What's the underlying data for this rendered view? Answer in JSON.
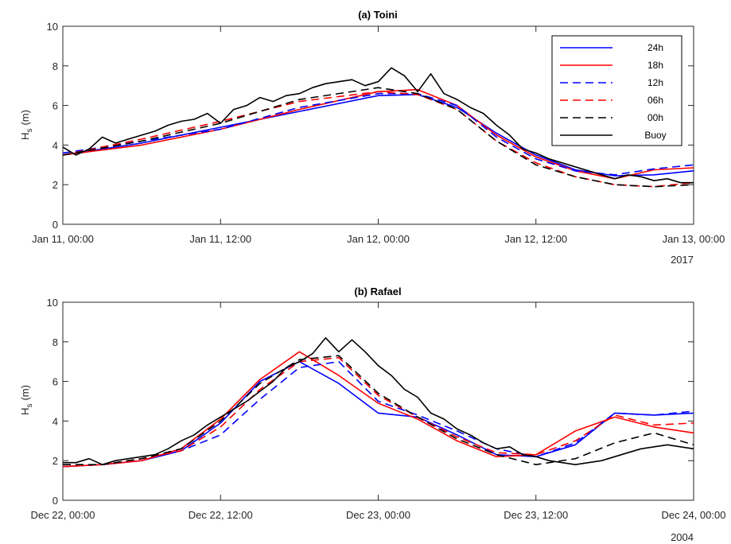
{
  "colors": {
    "blue": "#0000ff",
    "red": "#ff0000",
    "black": "#000000"
  },
  "chart_data": [
    {
      "type": "line",
      "title": "(a) Toini",
      "ylabel_main": "H",
      "ylabel_sub": "s",
      "ylabel_unit": "(m)",
      "ylim": [
        0,
        10
      ],
      "yticks": [
        0,
        2,
        4,
        6,
        8,
        10
      ],
      "xlim": [
        0,
        48
      ],
      "xticks": [
        0,
        12,
        24,
        36,
        48
      ],
      "xtick_labels": [
        "Jan 11, 00:00",
        "Jan 11, 12:00",
        "Jan 12, 00:00",
        "Jan 12, 12:00",
        "Jan 13, 00:00"
      ],
      "year_label": "2017",
      "grid": false,
      "legend": "top-right",
      "series": [
        {
          "name": "24h",
          "color": "#0000ff",
          "dash": "solid",
          "x": [
            0,
            6,
            12,
            18,
            24,
            27,
            30,
            33,
            36,
            39,
            42,
            45,
            48
          ],
          "y": [
            3.5,
            4.1,
            4.9,
            5.7,
            6.5,
            6.55,
            5.9,
            4.6,
            3.5,
            2.75,
            2.45,
            2.5,
            2.7
          ]
        },
        {
          "name": "18h",
          "color": "#ff0000",
          "dash": "solid",
          "x": [
            0,
            6,
            12,
            18,
            24,
            27,
            30,
            33,
            36,
            39,
            42,
            45,
            48
          ],
          "y": [
            3.5,
            4.0,
            4.8,
            5.8,
            6.7,
            6.8,
            6.0,
            4.5,
            3.4,
            2.7,
            2.3,
            2.75,
            2.85
          ]
        },
        {
          "name": "12h",
          "color": "#0000ff",
          "dash": "dashed",
          "x": [
            0,
            6,
            12,
            18,
            24,
            27,
            30,
            33,
            36,
            39,
            42,
            45,
            48
          ],
          "y": [
            3.6,
            4.2,
            4.8,
            5.9,
            6.6,
            6.6,
            6.0,
            4.4,
            3.3,
            2.7,
            2.5,
            2.8,
            3.0
          ]
        },
        {
          "name": "06h",
          "color": "#ff0000",
          "dash": "dashed",
          "x": [
            0,
            6,
            12,
            18,
            24,
            27,
            30,
            33,
            36,
            39,
            42,
            45,
            48
          ],
          "y": [
            3.5,
            4.3,
            5.2,
            6.2,
            6.7,
            6.55,
            5.8,
            4.2,
            3.1,
            2.4,
            2.0,
            1.9,
            2.1
          ]
        },
        {
          "name": "00h",
          "color": "#000000",
          "dash": "dashed",
          "x": [
            0,
            6,
            12,
            18,
            24,
            27,
            30,
            33,
            36,
            39,
            42,
            45,
            48
          ],
          "y": [
            3.5,
            4.2,
            5.1,
            6.3,
            6.9,
            6.6,
            5.8,
            4.2,
            3.0,
            2.4,
            2.0,
            1.9,
            2.0
          ]
        },
        {
          "name": "Buoy",
          "color": "#000000",
          "dash": "solid",
          "x": [
            0,
            1,
            2,
            3,
            4,
            5,
            6,
            7,
            8,
            9,
            10,
            11,
            12,
            13,
            14,
            15,
            16,
            17,
            18,
            19,
            20,
            21,
            22,
            23,
            24,
            25,
            26,
            27,
            28,
            29,
            30,
            31,
            32,
            33,
            34,
            35,
            36,
            37,
            38,
            39,
            40,
            41,
            42,
            43,
            44,
            45,
            46,
            47,
            48
          ],
          "y": [
            3.9,
            3.5,
            3.8,
            4.4,
            4.1,
            4.3,
            4.5,
            4.7,
            5.0,
            5.2,
            5.3,
            5.6,
            5.1,
            5.8,
            6.0,
            6.4,
            6.2,
            6.5,
            6.6,
            6.9,
            7.1,
            7.2,
            7.3,
            7.0,
            7.2,
            7.9,
            7.5,
            6.7,
            7.6,
            6.6,
            6.3,
            5.9,
            5.6,
            5.0,
            4.5,
            3.8,
            3.6,
            3.3,
            3.1,
            2.9,
            2.7,
            2.5,
            2.3,
            2.5,
            2.4,
            2.2,
            2.3,
            2.1,
            2.1
          ]
        }
      ]
    },
    {
      "type": "line",
      "title": "(b) Rafael",
      "ylabel_main": "H",
      "ylabel_sub": "s",
      "ylabel_unit": "(m)",
      "ylim": [
        0,
        10
      ],
      "yticks": [
        0,
        2,
        4,
        6,
        8,
        10
      ],
      "xlim": [
        0,
        48
      ],
      "xticks": [
        0,
        12,
        24,
        36,
        48
      ],
      "xtick_labels": [
        "Dec 22, 00:00",
        "Dec 22, 12:00",
        "Dec 23, 00:00",
        "Dec 23, 12:00",
        "Dec 24, 00:00"
      ],
      "year_label": "2004",
      "grid": false,
      "series": [
        {
          "name": "24h",
          "color": "#0000ff",
          "dash": "solid",
          "x": [
            0,
            3,
            6,
            9,
            12,
            15,
            18,
            21,
            24,
            27,
            30,
            33,
            36,
            39,
            42,
            45,
            48
          ],
          "y": [
            1.7,
            1.8,
            2.0,
            2.5,
            3.9,
            6.0,
            7.0,
            5.9,
            4.4,
            4.2,
            3.3,
            2.3,
            2.2,
            2.8,
            4.4,
            4.3,
            4.4
          ]
        },
        {
          "name": "18h",
          "color": "#ff0000",
          "dash": "solid",
          "x": [
            0,
            3,
            6,
            9,
            12,
            15,
            18,
            21,
            24,
            27,
            30,
            33,
            36,
            39,
            42,
            45,
            48
          ],
          "y": [
            1.7,
            1.8,
            2.0,
            2.6,
            4.1,
            6.1,
            7.5,
            6.3,
            4.9,
            4.1,
            3.0,
            2.2,
            2.3,
            3.5,
            4.2,
            3.7,
            3.4
          ]
        },
        {
          "name": "12h",
          "color": "#0000ff",
          "dash": "dashed",
          "x": [
            0,
            3,
            6,
            9,
            12,
            15,
            18,
            21,
            24,
            27,
            30,
            33,
            36,
            39,
            42,
            45,
            48
          ],
          "y": [
            1.7,
            1.8,
            2.1,
            2.5,
            3.3,
            5.1,
            6.7,
            7.0,
            5.0,
            4.3,
            3.5,
            2.6,
            2.2,
            2.9,
            4.4,
            4.3,
            4.5
          ]
        },
        {
          "name": "06h",
          "color": "#ff0000",
          "dash": "dashed",
          "x": [
            0,
            3,
            6,
            9,
            12,
            15,
            18,
            21,
            24,
            27,
            30,
            33,
            36,
            39,
            42,
            45,
            48
          ],
          "y": [
            1.7,
            1.8,
            2.1,
            2.5,
            3.7,
            5.6,
            7.0,
            7.2,
            5.3,
            4.2,
            3.2,
            2.4,
            2.3,
            3.0,
            4.3,
            3.8,
            3.9
          ]
        },
        {
          "name": "00h",
          "color": "#000000",
          "dash": "dashed",
          "x": [
            0,
            3,
            6,
            9,
            12,
            15,
            18,
            21,
            24,
            27,
            30,
            33,
            36,
            39,
            42,
            45,
            48
          ],
          "y": [
            1.8,
            1.8,
            2.1,
            2.6,
            4.0,
            5.9,
            7.1,
            7.3,
            5.4,
            4.2,
            3.1,
            2.3,
            1.8,
            2.1,
            2.9,
            3.4,
            2.8
          ]
        },
        {
          "name": "Buoy",
          "color": "#000000",
          "dash": "solid",
          "x": [
            0,
            1,
            2,
            3,
            4,
            5,
            6,
            7,
            8,
            9,
            10,
            11,
            12,
            13,
            14,
            15,
            16,
            17,
            18,
            19,
            20,
            21,
            22,
            23,
            24,
            25,
            26,
            27,
            28,
            29,
            30,
            31,
            32,
            33,
            34,
            35,
            36,
            37,
            38,
            39,
            40,
            41,
            42,
            43,
            44,
            45,
            46,
            47,
            48
          ],
          "y": [
            1.9,
            1.9,
            2.1,
            1.8,
            2.0,
            2.1,
            2.2,
            2.3,
            2.6,
            3.0,
            3.3,
            3.8,
            4.2,
            4.6,
            5.0,
            5.5,
            6.0,
            6.7,
            7.0,
            7.4,
            8.2,
            7.5,
            8.1,
            7.5,
            6.8,
            6.3,
            5.6,
            5.2,
            4.4,
            4.1,
            3.6,
            3.3,
            2.9,
            2.6,
            2.7,
            2.3,
            2.2,
            2.0,
            1.9,
            1.8,
            1.9,
            2.0,
            2.2,
            2.4,
            2.6,
            2.7,
            2.8,
            2.7,
            2.6
          ]
        }
      ]
    }
  ]
}
